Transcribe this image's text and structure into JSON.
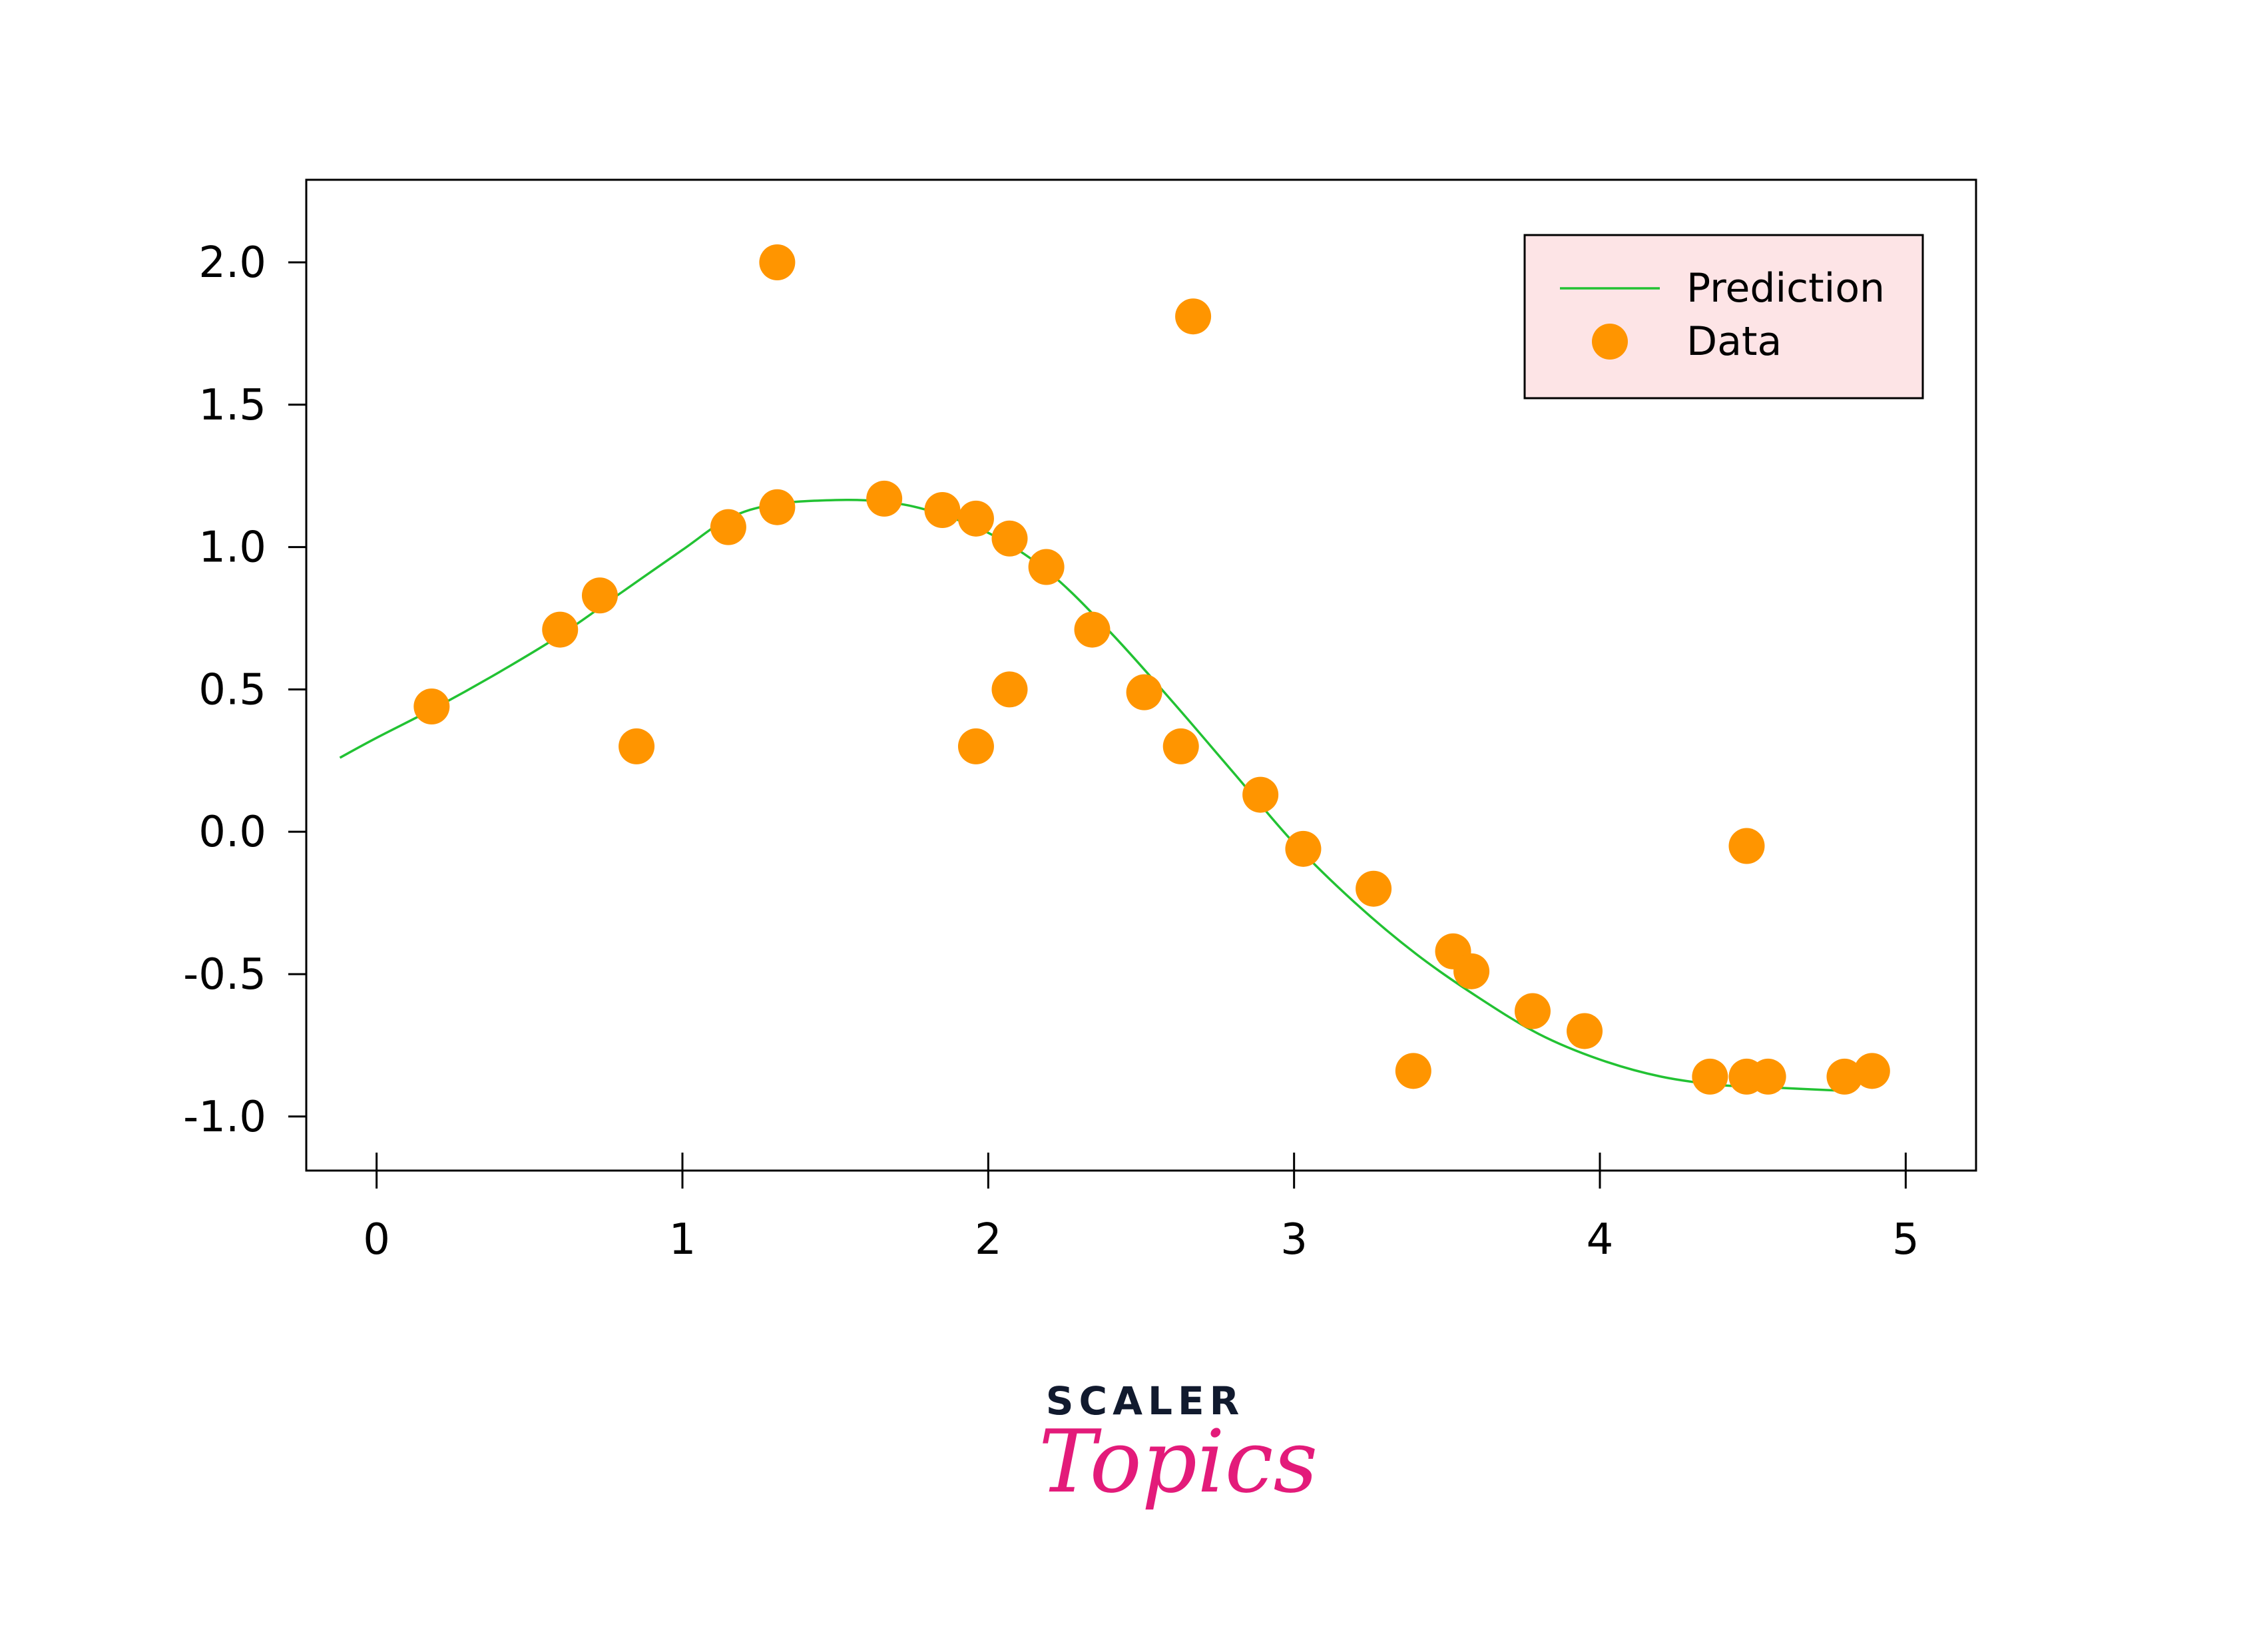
{
  "chart_data": {
    "type": "scatter",
    "title": "",
    "xlabel": "",
    "ylabel": "",
    "xlim": [
      -0.23,
      5.23
    ],
    "ylim": [
      -1.19,
      2.29
    ],
    "x_ticks": [
      0,
      1,
      2,
      3,
      4,
      5
    ],
    "x_tick_labels": [
      "0",
      "1",
      "2",
      "3",
      "4",
      "5"
    ],
    "y_ticks": [
      -1.0,
      -0.5,
      0.0,
      0.5,
      1.0,
      1.5,
      2.0
    ],
    "y_tick_labels": [
      "-1.0",
      "-0.5",
      "0.0",
      "0.5",
      "1.0",
      "1.5",
      "2.0"
    ],
    "grid": false,
    "legend_position": "top-right",
    "legend_background": "#fde4e6",
    "series": [
      {
        "name": "Prediction",
        "kind": "line",
        "color": "#22c233",
        "x": [
          -0.12,
          0.0,
          0.2,
          0.4,
          0.6,
          0.8,
          1.0,
          1.15,
          1.3,
          1.5,
          1.65,
          1.8,
          2.0,
          2.2,
          2.4,
          2.6,
          2.8,
          3.0,
          3.2,
          3.4,
          3.6,
          3.8,
          4.0,
          4.2,
          4.4,
          4.6,
          4.8
        ],
        "y": [
          0.26,
          0.33,
          0.44,
          0.56,
          0.69,
          0.84,
          0.99,
          1.1,
          1.15,
          1.165,
          1.16,
          1.13,
          1.05,
          0.91,
          0.7,
          0.46,
          0.21,
          -0.04,
          -0.25,
          -0.43,
          -0.58,
          -0.71,
          -0.8,
          -0.86,
          -0.89,
          -0.9,
          -0.91
        ]
      },
      {
        "name": "Data",
        "kind": "scatter",
        "color": "#ff9500",
        "points": [
          [
            0.18,
            0.44
          ],
          [
            0.6,
            0.71
          ],
          [
            0.73,
            0.83
          ],
          [
            0.85,
            0.3
          ],
          [
            1.15,
            1.07
          ],
          [
            1.31,
            1.14
          ],
          [
            1.31,
            2.0
          ],
          [
            1.66,
            1.17
          ],
          [
            1.85,
            1.13
          ],
          [
            1.96,
            1.1
          ],
          [
            1.96,
            0.3
          ],
          [
            2.07,
            1.03
          ],
          [
            2.07,
            0.5
          ],
          [
            2.19,
            0.93
          ],
          [
            2.34,
            0.71
          ],
          [
            2.51,
            0.49
          ],
          [
            2.63,
            0.3
          ],
          [
            2.67,
            1.81
          ],
          [
            2.89,
            0.13
          ],
          [
            3.03,
            -0.06
          ],
          [
            3.26,
            -0.2
          ],
          [
            3.39,
            -0.84
          ],
          [
            3.52,
            -0.42
          ],
          [
            3.58,
            -0.49
          ],
          [
            3.78,
            -0.63
          ],
          [
            3.95,
            -0.7
          ],
          [
            4.36,
            -0.86
          ],
          [
            4.48,
            -0.86
          ],
          [
            4.48,
            -0.05
          ],
          [
            4.55,
            -0.86
          ],
          [
            4.8,
            -0.86
          ],
          [
            4.89,
            -0.84
          ]
        ]
      }
    ]
  },
  "logo": {
    "line1": "SCALER",
    "line2": "Topics"
  }
}
